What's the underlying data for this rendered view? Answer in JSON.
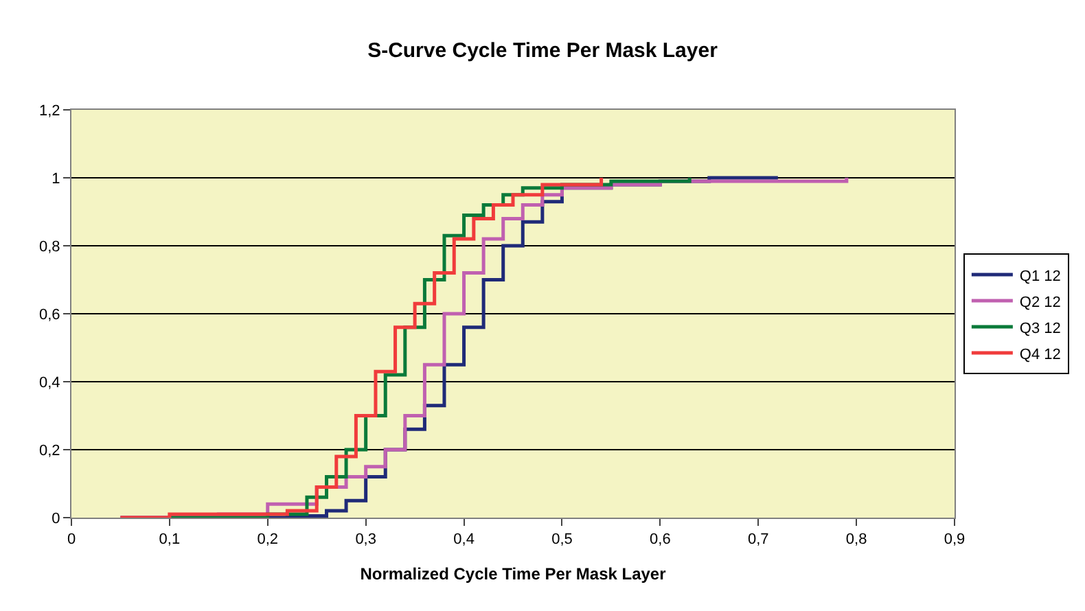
{
  "chart_data": {
    "type": "step",
    "title": "S-Curve Cycle Time Per Mask Layer",
    "xlabel": "Normalized Cycle Time Per Mask Layer",
    "xlim": [
      0,
      0.9
    ],
    "ylim": [
      0,
      1.2
    ],
    "xticks": [
      0,
      {
        "value": 0.1,
        "label": "0,1"
      },
      {
        "value": 0.2,
        "label": "0,2"
      },
      {
        "value": 0.3,
        "label": "0,3"
      },
      {
        "value": 0.4,
        "label": "0,4"
      },
      {
        "value": 0.5,
        "label": "0,5"
      },
      {
        "value": 0.6,
        "label": "0,6"
      },
      {
        "value": 0.7,
        "label": "0,7"
      },
      {
        "value": 0.8,
        "label": "0,8"
      },
      {
        "value": 0.9,
        "label": "0,9"
      }
    ],
    "yticks": [
      0,
      {
        "value": 0.2,
        "label": "0,2"
      },
      {
        "value": 0.4,
        "label": "0,4"
      },
      {
        "value": 0.6,
        "label": "0,6"
      },
      {
        "value": 0.8,
        "label": "0,8"
      },
      1,
      {
        "value": 1.2,
        "label": "1,2"
      }
    ],
    "grid": "y",
    "legend": "right",
    "marker": "none",
    "line_style": "solid",
    "series": [
      {
        "name": "Q1 12",
        "color": "#1f2a78",
        "x": [
          0.05,
          0.2,
          0.22,
          0.26,
          0.28,
          0.3,
          0.32,
          0.34,
          0.36,
          0.38,
          0.4,
          0.42,
          0.44,
          0.46,
          0.48,
          0.5,
          0.55,
          0.6,
          0.65,
          0.72
        ],
        "values": [
          0,
          0,
          0.005,
          0.02,
          0.05,
          0.12,
          0.2,
          0.26,
          0.33,
          0.45,
          0.56,
          0.7,
          0.8,
          0.87,
          0.93,
          0.97,
          0.98,
          0.99,
          1.0,
          1.0
        ]
      },
      {
        "name": "Q2 12",
        "color": "#c060b0",
        "x": [
          0.05,
          0.15,
          0.2,
          0.25,
          0.28,
          0.3,
          0.32,
          0.34,
          0.36,
          0.38,
          0.4,
          0.42,
          0.44,
          0.46,
          0.48,
          0.5,
          0.55,
          0.6,
          0.7,
          0.79
        ],
        "values": [
          0,
          0.01,
          0.04,
          0.09,
          0.12,
          0.15,
          0.2,
          0.3,
          0.45,
          0.6,
          0.72,
          0.82,
          0.88,
          0.92,
          0.95,
          0.97,
          0.98,
          0.99,
          0.99,
          1.0
        ]
      },
      {
        "name": "Q3 12",
        "color": "#0a7a3a",
        "x": [
          0.1,
          0.2,
          0.24,
          0.26,
          0.28,
          0.3,
          0.32,
          0.34,
          0.36,
          0.38,
          0.4,
          0.42,
          0.44,
          0.46,
          0.5,
          0.55,
          0.63
        ],
        "values": [
          0,
          0.01,
          0.06,
          0.12,
          0.2,
          0.3,
          0.42,
          0.56,
          0.7,
          0.83,
          0.89,
          0.92,
          0.95,
          0.97,
          0.98,
          0.99,
          1.0
        ]
      },
      {
        "name": "Q4 12",
        "color": "#f03c3c",
        "x": [
          0.05,
          0.1,
          0.2,
          0.22,
          0.25,
          0.27,
          0.29,
          0.31,
          0.33,
          0.35,
          0.37,
          0.39,
          0.41,
          0.43,
          0.45,
          0.48,
          0.54
        ],
        "values": [
          0,
          0.01,
          0.01,
          0.02,
          0.09,
          0.18,
          0.3,
          0.43,
          0.56,
          0.63,
          0.72,
          0.82,
          0.88,
          0.92,
          0.95,
          0.98,
          1.0
        ]
      }
    ]
  }
}
